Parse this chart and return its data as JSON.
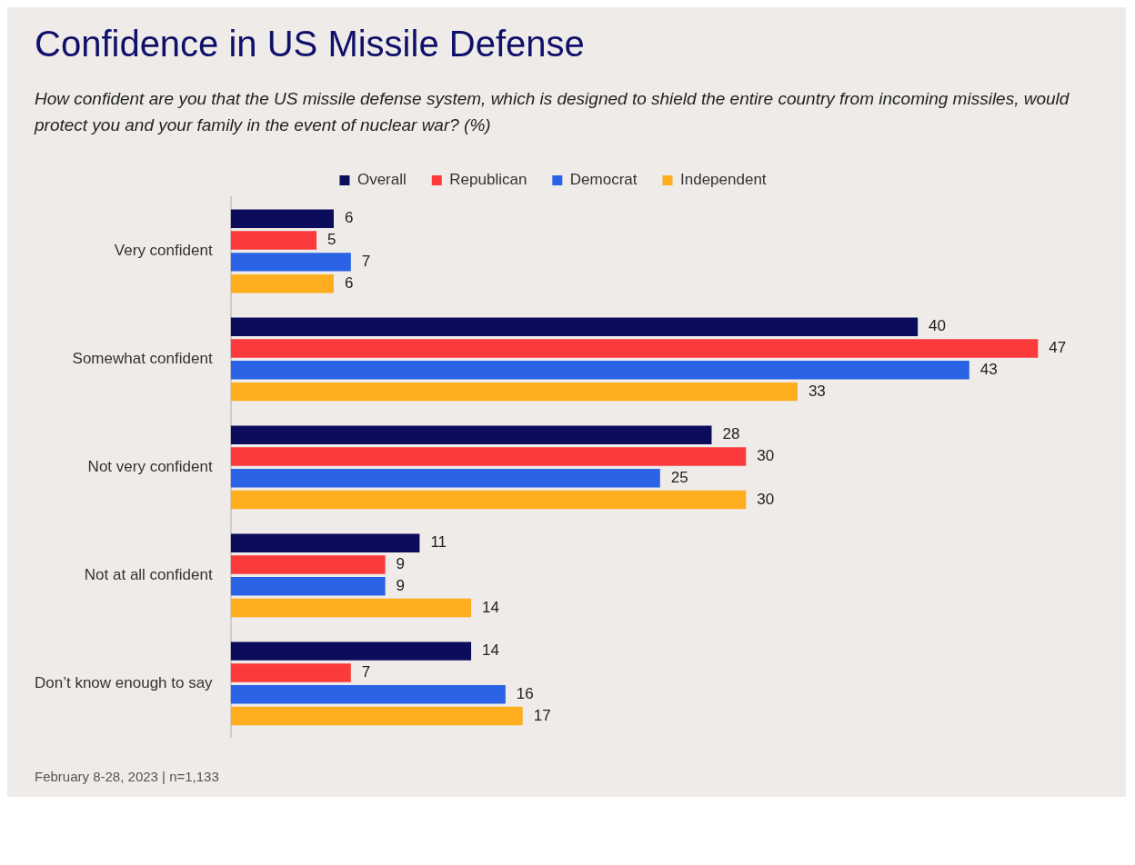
{
  "chart_data": {
    "type": "bar",
    "orientation": "horizontal",
    "title": "Confidence in US Missile Defense",
    "subtitle": "How confident are you that the US missile defense system, which is designed to shield the entire country from incoming missiles, would protect you and your family in the event of nuclear war? (%)",
    "categories": [
      "Very confident",
      "Somewhat confident",
      "Not very confident",
      "Not at all confident",
      "Don’t know enough to say"
    ],
    "series": [
      {
        "name": "Overall",
        "color": "#0c0c5c",
        "values": [
          6,
          40,
          28,
          11,
          14
        ]
      },
      {
        "name": "Republican",
        "color": "#fb3b3b",
        "values": [
          5,
          47,
          30,
          9,
          7
        ]
      },
      {
        "name": "Democrat",
        "color": "#2a63e6",
        "values": [
          7,
          43,
          25,
          9,
          16
        ]
      },
      {
        "name": "Independent",
        "color": "#fdad1e",
        "values": [
          6,
          33,
          30,
          14,
          17
        ]
      }
    ],
    "data_labels": true,
    "legend": "top",
    "tick_labels": "y",
    "annotations": [
      "February 8-28, 2023 | n=1,133"
    ]
  }
}
